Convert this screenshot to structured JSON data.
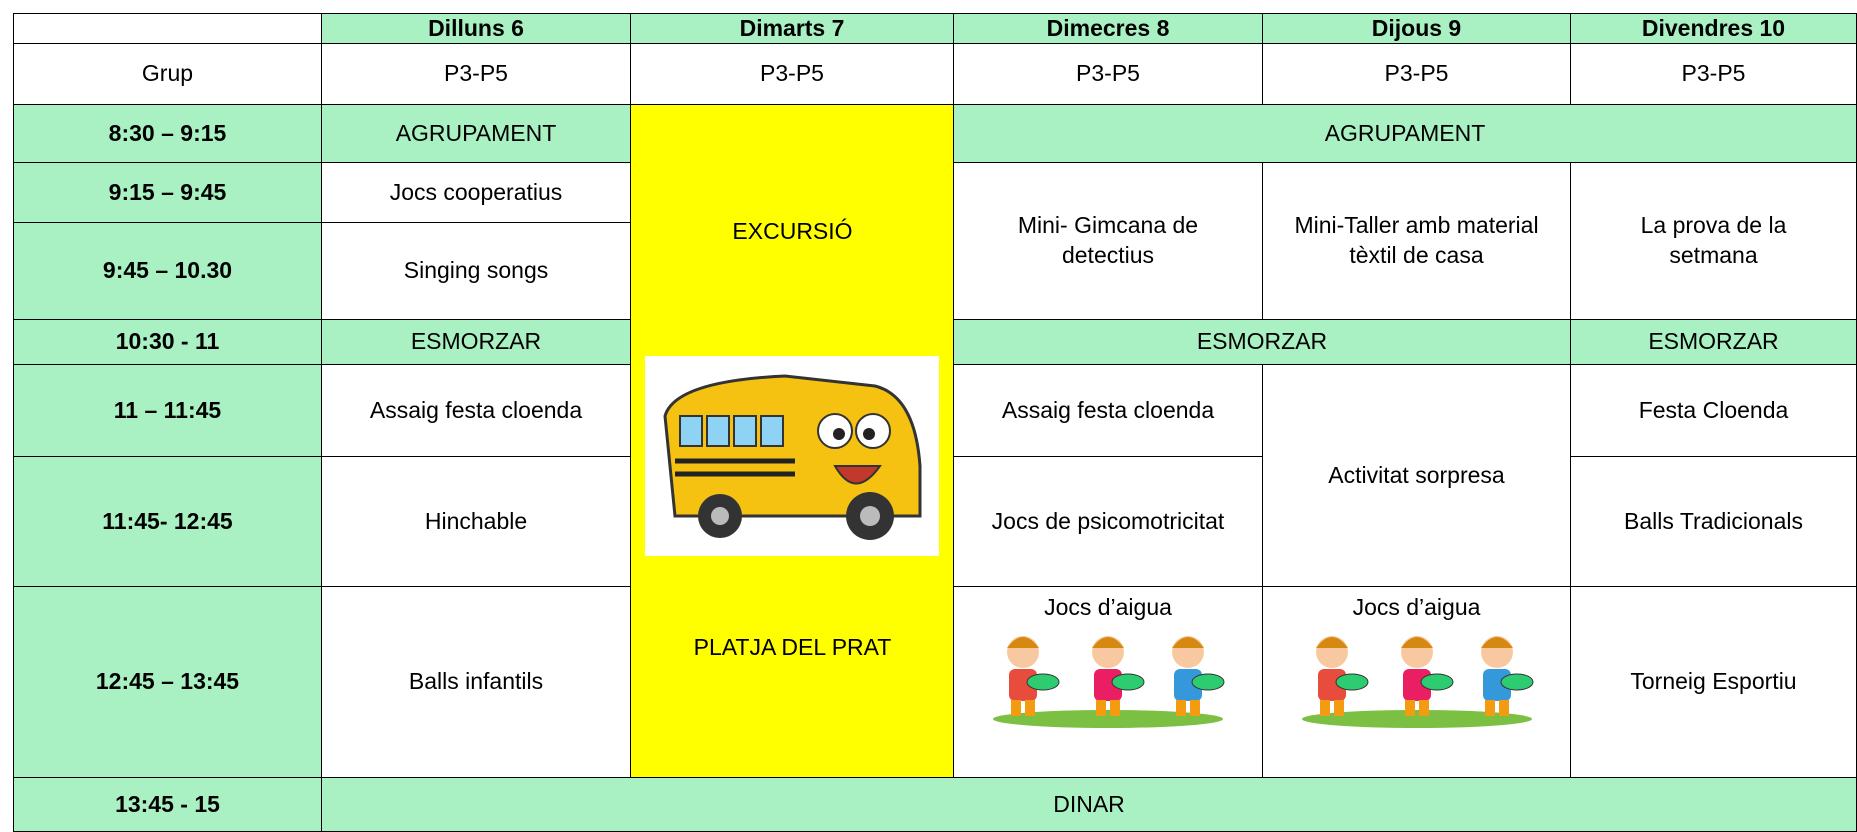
{
  "header": {
    "days": [
      "Dilluns 6",
      "Dimarts 7",
      "Dimecres 8",
      "Dijous 9",
      "Divendres 10"
    ]
  },
  "group": {
    "label": "Grup",
    "values": [
      "P3-P5",
      "P3-P5",
      "P3-P5",
      "P3-P5",
      "P3-P5"
    ]
  },
  "rows": [
    {
      "time": "8:30 – 9:15"
    },
    {
      "time": "9:15 – 9:45"
    },
    {
      "time": "9:45 – 10.30"
    },
    {
      "time": "10:30 - 11"
    },
    {
      "time": "11 – 11:45"
    },
    {
      "time": "11:45- 12:45"
    },
    {
      "time": "12:45 – 13:45"
    },
    {
      "time": "13:45 - 15"
    }
  ],
  "excursion": {
    "top": "EXCURSIÓ",
    "bottom": "PLATJA DEL PRAT"
  },
  "cells": [
    {
      "text": "AGRUPAMENT"
    },
    {
      "text": "Jocs cooperatius"
    },
    {
      "text": "Singing songs"
    },
    {
      "text": "ESMORZAR"
    },
    {
      "text": "Assaig festa cloenda"
    },
    {
      "text": "Hinchable"
    },
    {
      "text": "Balls infantils"
    },
    {
      "text": "AGRUPAMENT"
    },
    {
      "text": "Mini- Gimcana de detectius"
    },
    {
      "text": "Mini-Taller amb material tèxtil de casa"
    },
    {
      "text": "La prova de la setmana"
    },
    {
      "text": "ESMORZAR"
    },
    {
      "text": "ESMORZAR"
    },
    {
      "text": "Assaig festa cloenda"
    },
    {
      "text": "Jocs de psicomotricitat"
    },
    {
      "text": "Activitat sorpresa"
    },
    {
      "text": "Festa Cloenda"
    },
    {
      "text": "Balls Tradicionals"
    },
    {
      "text": "Jocs d’aigua"
    },
    {
      "text": "Jocs d’aigua"
    },
    {
      "text": "Torneig Esportiu"
    },
    {
      "text": "DINAR"
    }
  ]
}
